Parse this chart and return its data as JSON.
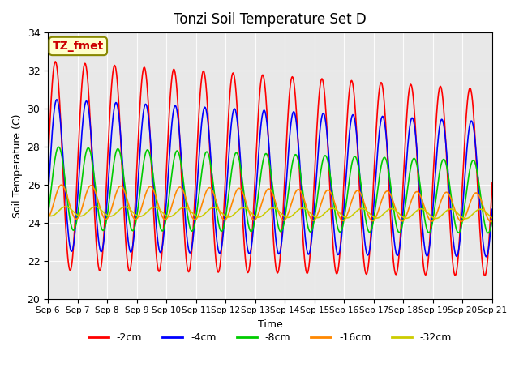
{
  "title": "Tonzi Soil Temperature Set D",
  "xlabel": "Time",
  "ylabel": "Soil Temperature (C)",
  "ylim": [
    20,
    34
  ],
  "annotation_text": "TZ_fmet",
  "background_color": "#e8e8e8",
  "fig_background": "#ffffff",
  "series": [
    {
      "label": "-2cm",
      "color": "#ff0000",
      "amplitude": 5.5,
      "phase": 0.0,
      "mean": 27.0,
      "trend": -0.06,
      "amp_trend": -0.04
    },
    {
      "label": "-4cm",
      "color": "#0000ff",
      "amplitude": 4.0,
      "phase": 0.3,
      "mean": 26.5,
      "trend": -0.05,
      "amp_trend": -0.03
    },
    {
      "label": "-8cm",
      "color": "#00cc00",
      "amplitude": 2.2,
      "phase": 0.7,
      "mean": 25.8,
      "trend": -0.03,
      "amp_trend": -0.02
    },
    {
      "label": "-16cm",
      "color": "#ff8800",
      "amplitude": 0.9,
      "phase": 1.3,
      "mean": 25.1,
      "trend": -0.02,
      "amp_trend": -0.01
    },
    {
      "label": "-32cm",
      "color": "#cccc00",
      "amplitude": 0.25,
      "phase": 2.2,
      "mean": 24.6,
      "trend": -0.01,
      "amp_trend": 0.0
    }
  ],
  "x_tick_labels": [
    "Sep 6",
    "Sep 7",
    "Sep 8",
    "Sep 9",
    "Sep 10",
    "Sep 11",
    "Sep 12",
    "Sep 13",
    "Sep 14",
    "Sep 15",
    "Sep 16",
    "Sep 17",
    "Sep 18",
    "Sep 19",
    "Sep 20",
    "Sep 21"
  ],
  "n_days": 15,
  "samples_per_day": 48
}
